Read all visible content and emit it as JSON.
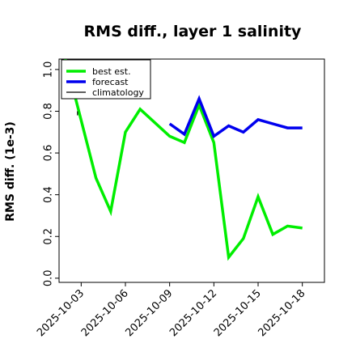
{
  "chart_data": {
    "type": "line",
    "title": "RMS diff., layer 1 salinity",
    "ylabel": "RMS diff. (1e-3)",
    "xlabel": "",
    "xlim": [
      "2025-10-01T12:00",
      "2025-10-19T12:00"
    ],
    "ylim": [
      -0.02,
      1.05
    ],
    "yticks": [
      0.0,
      0.2,
      0.4,
      0.6,
      0.8,
      1.0
    ],
    "ytick_labels": [
      "0.0",
      "0.2",
      "0.4",
      "0.6",
      "0.8",
      "1.0"
    ],
    "xticks": [
      "2025-10-03",
      "2025-10-06",
      "2025-10-09",
      "2025-10-12",
      "2025-10-15",
      "2025-10-18"
    ],
    "xtick_labels": [
      "2025-10-03",
      "2025-10-06",
      "2025-10-09",
      "2025-10-12",
      "2025-10-15",
      "2025-10-18"
    ],
    "highlighted_xtick": "2025-10-09",
    "highlight_color": "#228b22",
    "grid": false,
    "legend_position": "top-left",
    "series": [
      {
        "name": "best est.",
        "color": "#00ee00",
        "points": [
          {
            "x": "2025-10-01T18:00",
            "y": 1.1
          },
          {
            "x": "2025-10-04T00:00",
            "y": 0.48
          },
          {
            "x": "2025-10-05T00:00",
            "y": 0.32
          },
          {
            "x": "2025-10-06T00:00",
            "y": 0.7
          },
          {
            "x": "2025-10-07T00:00",
            "y": 0.81
          },
          {
            "x": "2025-10-09T00:00",
            "y": 0.68
          },
          {
            "x": "2025-10-10T00:00",
            "y": 0.65
          },
          {
            "x": "2025-10-11T00:00",
            "y": 0.83
          },
          {
            "x": "2025-10-12T00:00",
            "y": 0.65
          },
          {
            "x": "2025-10-13T00:00",
            "y": 0.1
          },
          {
            "x": "2025-10-14T00:00",
            "y": 0.19
          },
          {
            "x": "2025-10-15T00:00",
            "y": 0.39
          },
          {
            "x": "2025-10-16T00:00",
            "y": 0.21
          },
          {
            "x": "2025-10-17T00:00",
            "y": 0.25
          },
          {
            "x": "2025-10-18T00:00",
            "y": 0.24
          }
        ]
      },
      {
        "name": "forecast",
        "color": "#0000ee",
        "points": [
          {
            "x": "2025-10-09T00:00",
            "y": 0.74
          },
          {
            "x": "2025-10-10T00:00",
            "y": 0.69
          },
          {
            "x": "2025-10-11T00:00",
            "y": 0.86
          },
          {
            "x": "2025-10-12T00:00",
            "y": 0.68
          },
          {
            "x": "2025-10-13T00:00",
            "y": 0.73
          },
          {
            "x": "2025-10-14T00:00",
            "y": 0.7
          },
          {
            "x": "2025-10-15T00:00",
            "y": 0.76
          },
          {
            "x": "2025-10-16T00:00",
            "y": 0.74
          },
          {
            "x": "2025-10-17T00:00",
            "y": 0.72
          },
          {
            "x": "2025-10-18T00:00",
            "y": 0.72
          }
        ]
      },
      {
        "name": "climatology",
        "color": "#000000",
        "points": [
          {
            "x": "2025-10-02T18:00",
            "y": 0.8
          },
          {
            "x": "2025-10-02T18:00",
            "y": 0.78
          }
        ]
      }
    ]
  }
}
